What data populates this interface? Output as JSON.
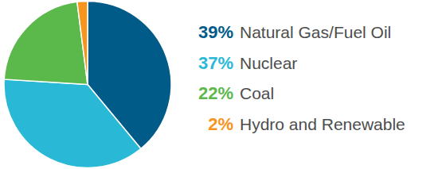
{
  "chart_data": {
    "type": "pie",
    "categories": [
      "Natural Gas/Fuel Oil",
      "Nuclear",
      "Coal",
      "Hydro and Renewable"
    ],
    "values": [
      39,
      37,
      22,
      2
    ],
    "value_labels": [
      "39%",
      "37%",
      "22%",
      "2%"
    ],
    "colors": [
      "#005b89",
      "#29b8d6",
      "#5bb94b",
      "#f7941d"
    ],
    "legend": "right"
  }
}
